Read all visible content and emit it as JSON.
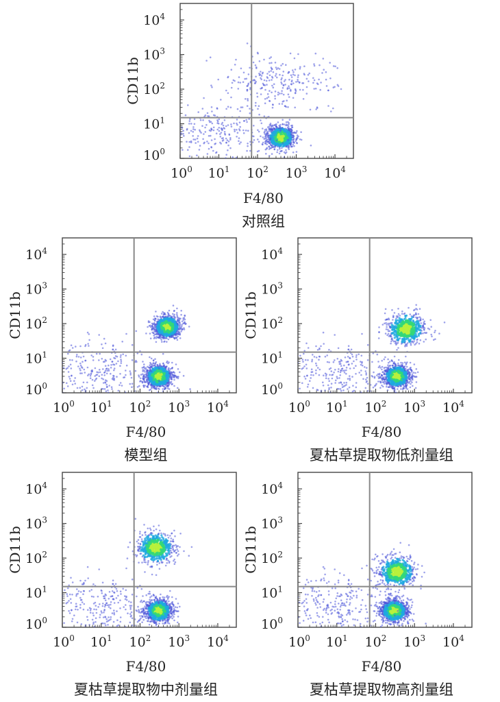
{
  "chart_data": [
    {
      "type": "scatter",
      "title": "对照组",
      "xlabel": "F4/80",
      "ylabel": "CD11b",
      "xscale": "log",
      "yscale": "log",
      "xlim": [
        1,
        30000
      ],
      "ylim": [
        1,
        30000
      ],
      "xticks": [
        "10^0",
        "10^1",
        "10^2",
        "10^3",
        "10^4"
      ],
      "yticks": [
        "10^0",
        "10^1",
        "10^2",
        "10^3",
        "10^4"
      ],
      "gates": {
        "x": 70,
        "y": 15
      },
      "populations": [
        {
          "x": 400,
          "y": 4,
          "density": "high"
        },
        {
          "x": 350,
          "y": 150,
          "density": "low"
        },
        {
          "x": 10,
          "y": 6,
          "density": "low"
        }
      ]
    },
    {
      "type": "scatter",
      "title": "模型组",
      "xlabel": "F4/80",
      "ylabel": "CD11b",
      "xscale": "log",
      "yscale": "log",
      "xlim": [
        1,
        30000
      ],
      "ylim": [
        1,
        30000
      ],
      "xticks": [
        "10^0",
        "10^1",
        "10^2",
        "10^3",
        "10^4"
      ],
      "yticks": [
        "10^0",
        "10^1",
        "10^2",
        "10^3",
        "10^4"
      ],
      "gates": {
        "x": 70,
        "y": 15
      },
      "populations": [
        {
          "x": 300,
          "y": 3,
          "density": "high"
        },
        {
          "x": 500,
          "y": 80,
          "density": "high"
        },
        {
          "x": 10,
          "y": 5,
          "density": "low"
        }
      ]
    },
    {
      "type": "scatter",
      "title": "夏枯草提取物低剂量组",
      "xlabel": "F4/80",
      "ylabel": "CD11b",
      "xscale": "log",
      "yscale": "log",
      "xlim": [
        1,
        30000
      ],
      "ylim": [
        1,
        30000
      ],
      "xticks": [
        "10^0",
        "10^1",
        "10^2",
        "10^3",
        "10^4"
      ],
      "yticks": [
        "10^0",
        "10^1",
        "10^2",
        "10^3",
        "10^4"
      ],
      "gates": {
        "x": 70,
        "y": 15
      },
      "populations": [
        {
          "x": 350,
          "y": 3,
          "density": "high"
        },
        {
          "x": 600,
          "y": 70,
          "density": "medium"
        },
        {
          "x": 10,
          "y": 5,
          "density": "low"
        }
      ]
    },
    {
      "type": "scatter",
      "title": "夏枯草提取物中剂量组",
      "xlabel": "F4/80",
      "ylabel": "CD11b",
      "xscale": "log",
      "yscale": "log",
      "xlim": [
        1,
        30000
      ],
      "ylim": [
        1,
        30000
      ],
      "xticks": [
        "10^0",
        "10^1",
        "10^2",
        "10^3",
        "10^4"
      ],
      "yticks": [
        "10^0",
        "10^1",
        "10^2",
        "10^3",
        "10^4"
      ],
      "gates": {
        "x": 70,
        "y": 15
      },
      "populations": [
        {
          "x": 300,
          "y": 3,
          "density": "high"
        },
        {
          "x": 250,
          "y": 200,
          "density": "medium"
        },
        {
          "x": 10,
          "y": 5,
          "density": "low"
        }
      ]
    },
    {
      "type": "scatter",
      "title": "夏枯草提取物高剂量组",
      "xlabel": "F4/80",
      "ylabel": "CD11b",
      "xscale": "log",
      "yscale": "log",
      "xlim": [
        1,
        30000
      ],
      "ylim": [
        1,
        30000
      ],
      "xticks": [
        "10^0",
        "10^1",
        "10^2",
        "10^3",
        "10^4"
      ],
      "yticks": [
        "10^0",
        "10^1",
        "10^2",
        "10^3",
        "10^4"
      ],
      "gates": {
        "x": 70,
        "y": 15
      },
      "populations": [
        {
          "x": 300,
          "y": 3,
          "density": "high"
        },
        {
          "x": 350,
          "y": 40,
          "density": "medium"
        },
        {
          "x": 10,
          "y": 5,
          "density": "low"
        }
      ]
    }
  ],
  "colors": {
    "sparse": "#4c55d8",
    "medium": "#1fa9e0",
    "dense": "#33d77a",
    "core": "#b8f03c",
    "axis": "#444444",
    "gate": "#888888"
  }
}
